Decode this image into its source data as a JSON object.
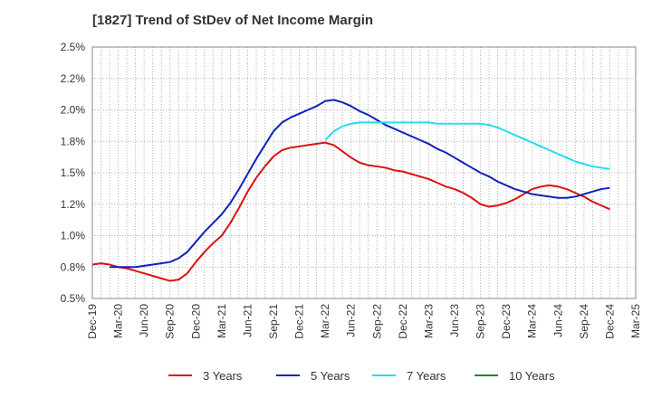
{
  "chart_data": {
    "type": "line",
    "title": "[1827]  Trend of StDev of Net Income Margin",
    "xlabel": "",
    "ylabel": "",
    "ylim": [
      0.5,
      2.5
    ],
    "y_ticks": [
      "0.5%",
      "0.8%",
      "1.0%",
      "1.2%",
      "1.5%",
      "1.8%",
      "2.0%",
      "2.2%",
      "2.5%"
    ],
    "x_ticks": [
      "Dec-19",
      "Mar-20",
      "Jun-20",
      "Sep-20",
      "Dec-20",
      "Mar-21",
      "Jun-21",
      "Sep-21",
      "Dec-21",
      "Mar-22",
      "Jun-22",
      "Sep-22",
      "Dec-22",
      "Mar-23",
      "Jun-23",
      "Sep-23",
      "Dec-23",
      "Mar-24",
      "Jun-24",
      "Sep-24",
      "Dec-24",
      "Mar-25"
    ],
    "x_months": [
      "2019-12",
      "2020-01",
      "2020-02",
      "2020-03",
      "2020-04",
      "2020-05",
      "2020-06",
      "2020-07",
      "2020-08",
      "2020-09",
      "2020-10",
      "2020-11",
      "2020-12",
      "2021-01",
      "2021-02",
      "2021-03",
      "2021-04",
      "2021-05",
      "2021-06",
      "2021-07",
      "2021-08",
      "2021-09",
      "2021-10",
      "2021-11",
      "2021-12",
      "2022-01",
      "2022-02",
      "2022-03",
      "2022-04",
      "2022-05",
      "2022-06",
      "2022-07",
      "2022-08",
      "2022-09",
      "2022-10",
      "2022-11",
      "2022-12",
      "2023-01",
      "2023-02",
      "2023-03",
      "2023-04",
      "2023-05",
      "2023-06",
      "2023-07",
      "2023-08",
      "2023-09",
      "2023-10",
      "2023-11",
      "2023-12",
      "2024-01",
      "2024-02",
      "2024-03",
      "2024-04",
      "2024-05",
      "2024-06",
      "2024-07",
      "2024-08",
      "2024-09",
      "2024-10",
      "2024-11",
      "2024-12"
    ],
    "grid": true,
    "legend_position": "bottom",
    "series": [
      {
        "name": "3 Years",
        "color": "#dd1111",
        "values": [
          0.77,
          0.78,
          0.77,
          0.75,
          0.74,
          0.72,
          0.7,
          0.68,
          0.66,
          0.64,
          0.65,
          0.7,
          0.79,
          0.87,
          0.94,
          1.0,
          1.1,
          1.22,
          1.35,
          1.46,
          1.55,
          1.63,
          1.68,
          1.7,
          1.71,
          1.72,
          1.73,
          1.74,
          1.72,
          1.67,
          1.62,
          1.58,
          1.56,
          1.55,
          1.54,
          1.52,
          1.51,
          1.49,
          1.47,
          1.45,
          1.42,
          1.39,
          1.37,
          1.34,
          1.3,
          1.25,
          1.23,
          1.24,
          1.26,
          1.29,
          1.33,
          1.37,
          1.39,
          1.4,
          1.39,
          1.37,
          1.34,
          1.31,
          1.27,
          1.24,
          1.21
        ]
      },
      {
        "name": "5 Years",
        "color": "#1122bb",
        "values": [
          null,
          null,
          0.75,
          0.75,
          0.75,
          0.75,
          0.76,
          0.77,
          0.78,
          0.79,
          0.82,
          0.87,
          0.95,
          1.03,
          1.1,
          1.17,
          1.26,
          1.37,
          1.49,
          1.61,
          1.72,
          1.83,
          1.9,
          1.94,
          1.97,
          2.0,
          2.03,
          2.07,
          2.08,
          2.06,
          2.03,
          1.99,
          1.96,
          1.92,
          1.88,
          1.85,
          1.82,
          1.79,
          1.76,
          1.73,
          1.69,
          1.66,
          1.62,
          1.58,
          1.54,
          1.5,
          1.47,
          1.43,
          1.4,
          1.37,
          1.35,
          1.33,
          1.32,
          1.31,
          1.3,
          1.3,
          1.31,
          1.33,
          1.35,
          1.37,
          1.38
        ]
      },
      {
        "name": "7 Years",
        "color": "#22ddee",
        "values": [
          null,
          null,
          null,
          null,
          null,
          null,
          null,
          null,
          null,
          null,
          null,
          null,
          null,
          null,
          null,
          null,
          null,
          null,
          null,
          null,
          null,
          null,
          null,
          null,
          null,
          null,
          null,
          1.76,
          1.83,
          1.87,
          1.89,
          1.9,
          1.9,
          1.9,
          1.9,
          1.9,
          1.9,
          1.9,
          1.9,
          1.9,
          1.89,
          1.89,
          1.89,
          1.89,
          1.89,
          1.89,
          1.88,
          1.86,
          1.83,
          1.8,
          1.77,
          1.74,
          1.71,
          1.68,
          1.65,
          1.62,
          1.59,
          1.57,
          1.55,
          1.54,
          1.53
        ]
      },
      {
        "name": "10 Years",
        "color": "#228822",
        "values": []
      }
    ]
  }
}
